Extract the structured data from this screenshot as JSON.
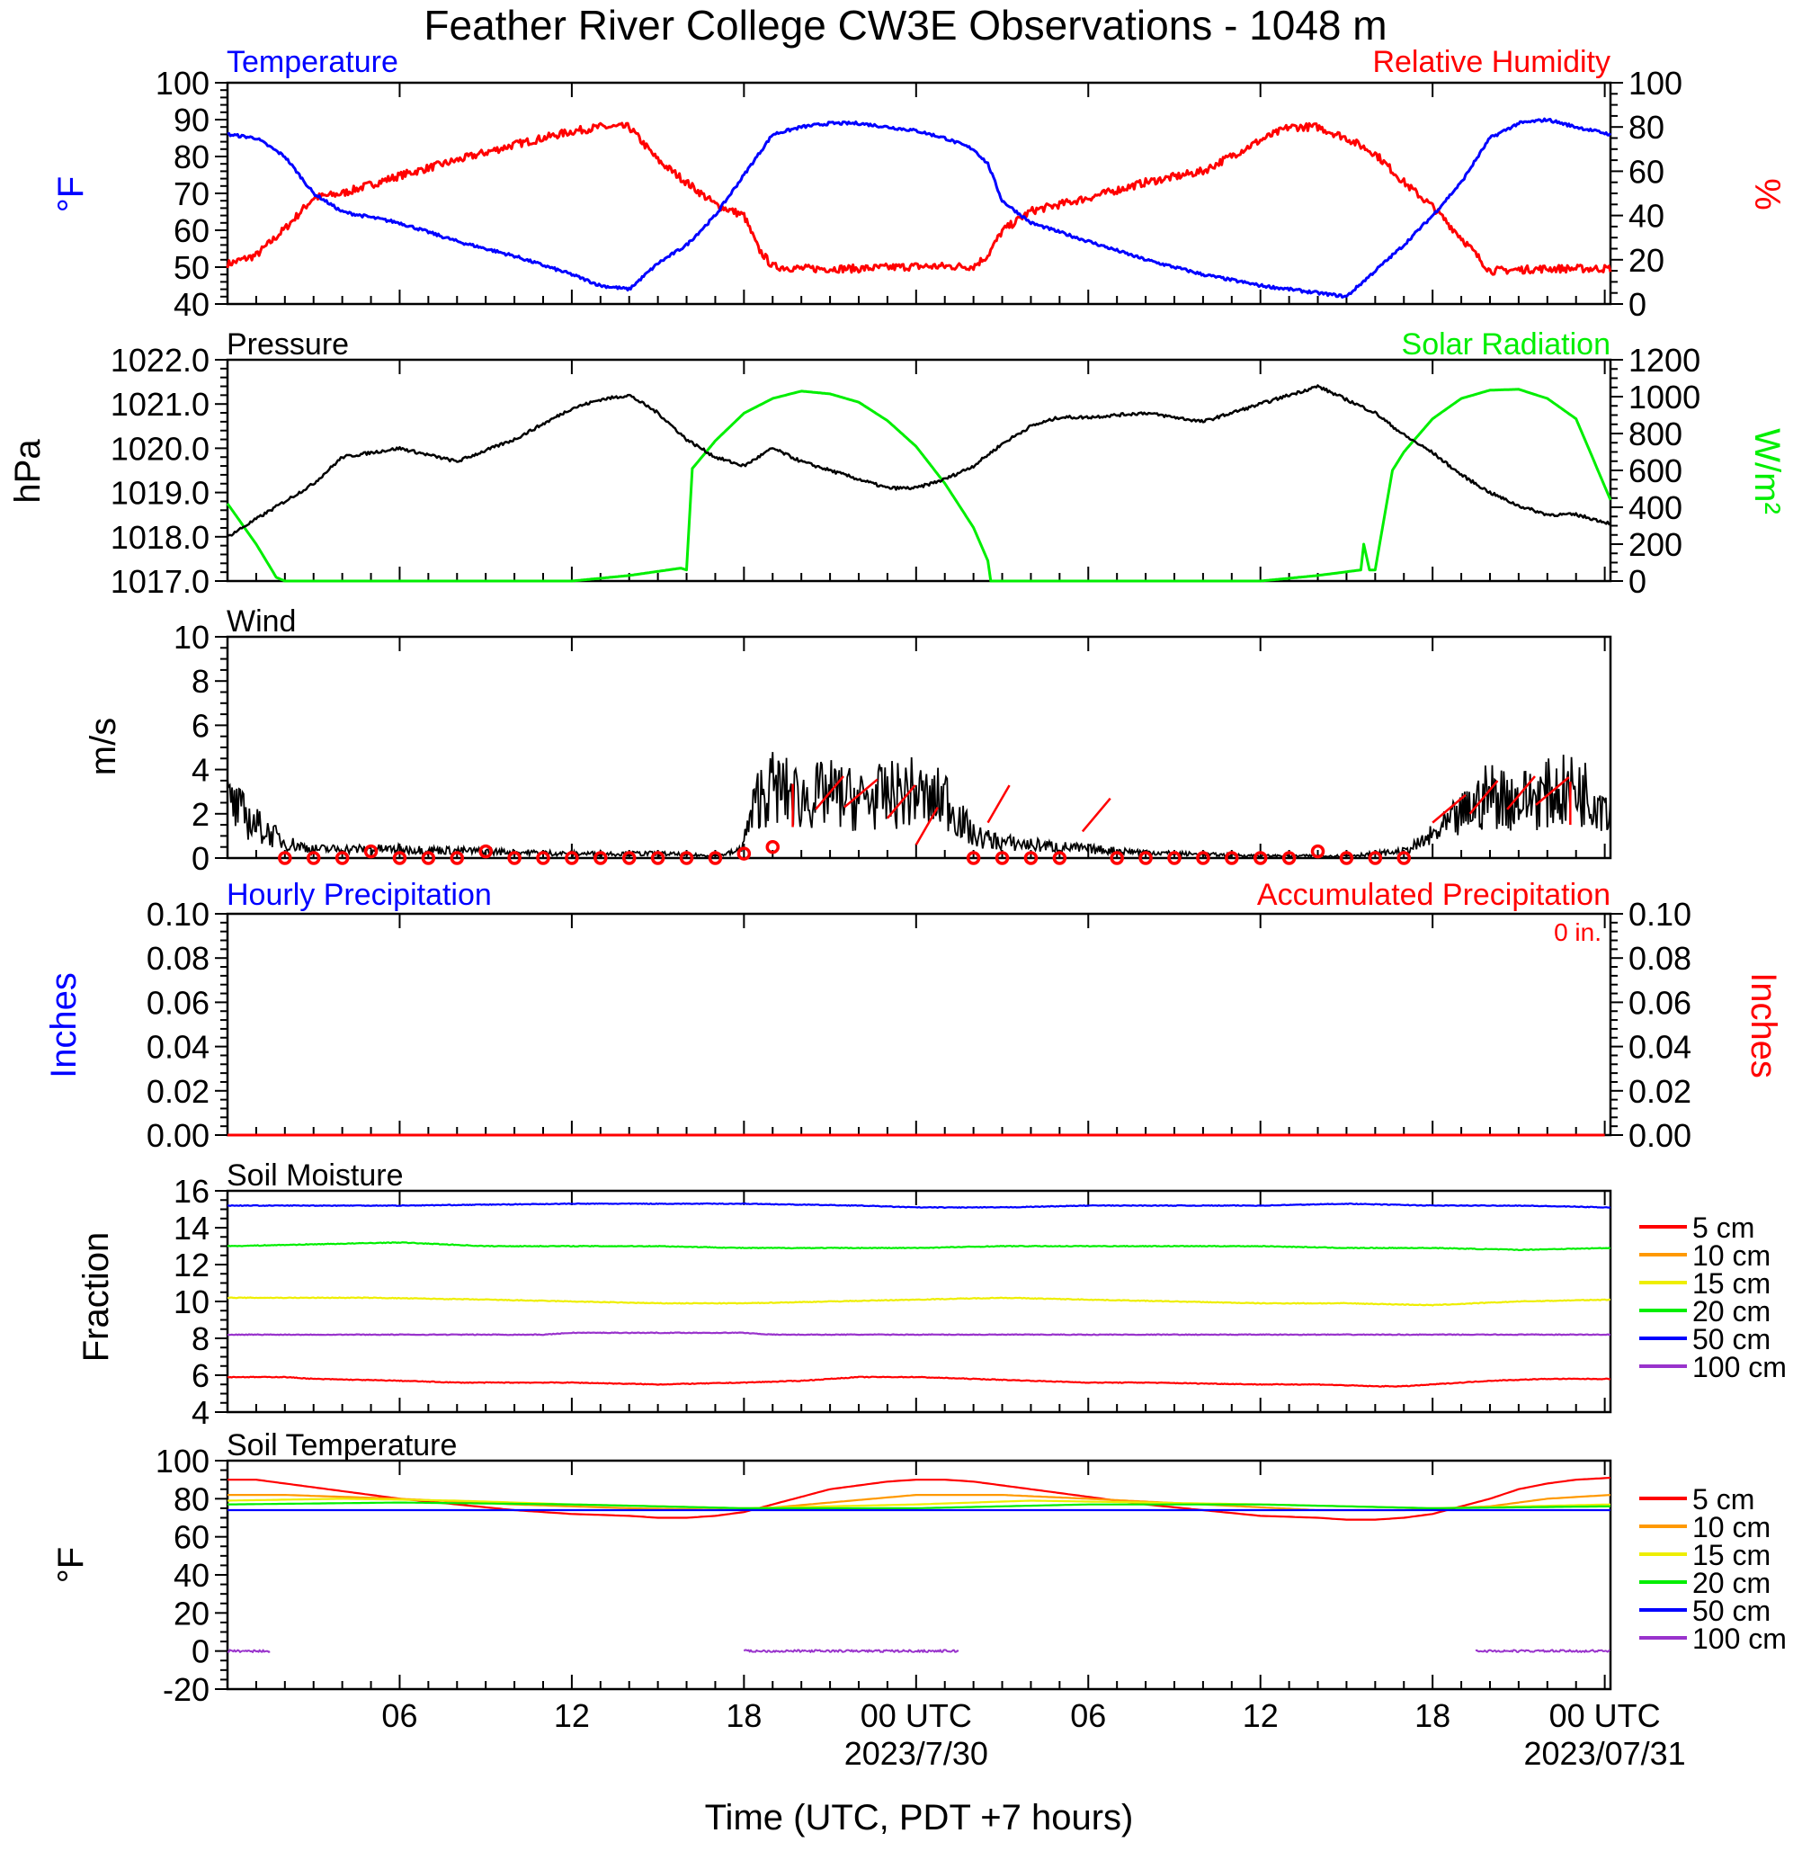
{
  "title": "Feather River College CW3E Observations - 1048 m",
  "time_axis": {
    "xlabel": "Time (UTC, PDT +7 hours)",
    "xlim_hours": [
      0,
      48.2
    ],
    "ticks": [
      {
        "h": 6,
        "label": "06"
      },
      {
        "h": 12,
        "label": "12"
      },
      {
        "h": 18,
        "label": "18"
      },
      {
        "h": 24,
        "label": "00 UTC"
      },
      {
        "h": 30,
        "label": "06"
      },
      {
        "h": 36,
        "label": "12"
      },
      {
        "h": 42,
        "label": "18"
      },
      {
        "h": 48,
        "label": "00 UTC"
      }
    ],
    "dates": [
      {
        "h": 24,
        "label": "2023/7/30"
      },
      {
        "h": 48,
        "label": "2023/07/31"
      }
    ]
  },
  "colors": {
    "blue": "#0000ff",
    "red": "#ff0000",
    "green": "#00ee00",
    "black": "#000000",
    "orange": "#ff9900",
    "yellow": "#eeee00",
    "purple": "#9933cc"
  },
  "panels": {
    "temp": {
      "left_title": "Temperature",
      "right_title": "Relative Humidity",
      "left_ylabel": "°F",
      "right_ylabel": "%"
    },
    "pressure": {
      "left_title": "Pressure",
      "right_title": "Solar Radiation",
      "left_ylabel": "hPa",
      "right_ylabel": "W/m²"
    },
    "wind": {
      "left_title": "Wind",
      "left_ylabel": "m/s"
    },
    "precip": {
      "left_title": "Hourly Precipitation",
      "right_title": "Accumulated Precipitation",
      "left_ylabel": "Inches",
      "right_ylabel": "Inches",
      "accum_text": "0 in."
    },
    "soil_moist": {
      "left_title": "Soil Moisture",
      "left_ylabel": "Fraction"
    },
    "soil_temp": {
      "left_title": "Soil Temperature",
      "left_ylabel": "°F"
    }
  },
  "chart_data": [
    {
      "type": "line",
      "title": "Temperature",
      "ylabel": "°F",
      "ylim": [
        40,
        100
      ],
      "series": [
        {
          "name": "Temperature",
          "color": "blue",
          "x": [
            0,
            1,
            2,
            3,
            4,
            6,
            8,
            10,
            12,
            13,
            14,
            15,
            16,
            17,
            18,
            19,
            20,
            21,
            22,
            23,
            24,
            25,
            26,
            26.5,
            27,
            28,
            30,
            32,
            34,
            36,
            38,
            39,
            40,
            41,
            42,
            43,
            44,
            45,
            46,
            47,
            48.2
          ],
          "y": [
            86,
            85,
            80,
            70,
            65,
            62,
            57,
            53,
            48,
            45,
            44,
            51,
            56,
            64,
            75,
            86,
            88,
            89,
            89,
            88,
            87,
            85,
            82,
            78,
            68,
            62,
            57,
            52,
            48,
            45,
            43,
            42,
            49,
            56,
            64,
            73,
            85,
            89,
            90,
            88,
            86
          ]
        }
      ]
    },
    {
      "type": "line",
      "title": "Relative Humidity",
      "ylabel": "%",
      "ylim": [
        0,
        100
      ],
      "series": [
        {
          "name": "Relative Humidity",
          "color": "red",
          "x": [
            0,
            1,
            2,
            3,
            4,
            6,
            8,
            10,
            12,
            13,
            14,
            15,
            16,
            17,
            18,
            18.5,
            19,
            20,
            22,
            24,
            25,
            26,
            26.5,
            27,
            28,
            30,
            32,
            34,
            36,
            37,
            38,
            39,
            40,
            41,
            42,
            43,
            44,
            46,
            48.2
          ],
          "y": [
            18,
            22,
            34,
            48,
            50,
            58,
            65,
            72,
            78,
            80,
            80,
            65,
            55,
            45,
            40,
            25,
            17,
            16,
            16,
            17,
            17,
            17,
            22,
            33,
            42,
            48,
            55,
            60,
            74,
            80,
            80,
            75,
            68,
            55,
            44,
            30,
            15,
            16,
            16
          ]
        }
      ]
    },
    {
      "type": "line",
      "title": "Pressure",
      "ylabel": "hPa",
      "ylim": [
        1017.0,
        1022.0
      ],
      "series": [
        {
          "name": "Pressure",
          "color": "black",
          "x": [
            0,
            1,
            2,
            3,
            4,
            6,
            8,
            10,
            12,
            13,
            14,
            15,
            16,
            17,
            18,
            19,
            20,
            21,
            22,
            23,
            24,
            25,
            26,
            27,
            28,
            29,
            30,
            32,
            34,
            36,
            37,
            38,
            39,
            40,
            41,
            42,
            43,
            44,
            45,
            46,
            47,
            48.2
          ],
          "y": [
            1018.0,
            1018.4,
            1018.8,
            1019.2,
            1019.8,
            1020.0,
            1019.7,
            1020.2,
            1020.9,
            1021.1,
            1021.2,
            1020.8,
            1020.2,
            1019.8,
            1019.6,
            1020.0,
            1019.7,
            1019.5,
            1019.3,
            1019.1,
            1019.1,
            1019.3,
            1019.6,
            1020.1,
            1020.5,
            1020.7,
            1020.7,
            1020.8,
            1020.6,
            1021.0,
            1021.2,
            1021.4,
            1021.1,
            1020.8,
            1020.3,
            1019.9,
            1019.4,
            1019.0,
            1018.7,
            1018.5,
            1018.5,
            1018.3
          ]
        }
      ]
    },
    {
      "type": "line",
      "title": "Solar Radiation",
      "ylabel": "W/m²",
      "ylim": [
        0,
        1200
      ],
      "series": [
        {
          "name": "Solar Radiation",
          "color": "green",
          "x": [
            0,
            1,
            1.7,
            2,
            12,
            14,
            15.8,
            16,
            16.2,
            17,
            18,
            19,
            20,
            21,
            22,
            23,
            24,
            25,
            26,
            26.5,
            26.6,
            36,
            38,
            39.5,
            39.6,
            39.8,
            40,
            40.6,
            41,
            42,
            43,
            44,
            45,
            46,
            47,
            48.2
          ],
          "y": [
            420,
            200,
            20,
            0,
            0,
            30,
            70,
            60,
            610,
            760,
            910,
            990,
            1030,
            1015,
            970,
            870,
            730,
            530,
            290,
            110,
            0,
            0,
            30,
            60,
            200,
            60,
            60,
            600,
            700,
            880,
            990,
            1035,
            1040,
            990,
            880,
            440
          ]
        }
      ]
    },
    {
      "type": "line",
      "title": "Wind",
      "ylabel": "m/s",
      "ylim": [
        0,
        10
      ],
      "series": [
        {
          "name": "Wind",
          "color": "black",
          "x": [
            0,
            1,
            2,
            3,
            6,
            9,
            12,
            15,
            17,
            17.8,
            18,
            18.5,
            19,
            20,
            21,
            22,
            23,
            24,
            24.5,
            25,
            25.5,
            26,
            27,
            28,
            29,
            30,
            33,
            36,
            39,
            40,
            41,
            41.5,
            42,
            43,
            44,
            45,
            46,
            47,
            48,
            48.2
          ],
          "y": [
            2.5,
            1.5,
            0.7,
            0.4,
            0.4,
            0.3,
            0.2,
            0.2,
            0.1,
            0.3,
            0.8,
            2.8,
            3.2,
            2.7,
            2.9,
            2.6,
            2.8,
            3.0,
            2.5,
            2.8,
            1.8,
            1.0,
            0.7,
            0.6,
            0.5,
            0.4,
            0.2,
            0.1,
            0.1,
            0.2,
            0.3,
            0.6,
            1.0,
            1.9,
            2.9,
            2.6,
            2.9,
            3.1,
            2.6,
            2.4
          ]
        }
      ]
    },
    {
      "type": "line",
      "title": "Hourly Precipitation",
      "ylabel": "Inches",
      "ylim": [
        0,
        0.1
      ],
      "series": [
        {
          "name": "Hourly Precipitation",
          "color": "blue",
          "x": [
            0,
            48.2
          ],
          "y": [
            0,
            0
          ]
        },
        {
          "name": "Accumulated Precipitation",
          "color": "red",
          "x": [
            0,
            48.2
          ],
          "y": [
            0,
            0
          ]
        }
      ]
    },
    {
      "type": "line",
      "title": "Soil Moisture",
      "ylabel": "Fraction",
      "ylim": [
        4,
        16
      ],
      "series": [
        {
          "name": "5 cm",
          "color": "red",
          "x": [
            0,
            2,
            3,
            6,
            8,
            12,
            15,
            18,
            20,
            21,
            22,
            24,
            26,
            28,
            30,
            32,
            36,
            38,
            40,
            41,
            42,
            44,
            46,
            48.2
          ],
          "y": [
            5.9,
            5.9,
            5.8,
            5.7,
            5.6,
            5.6,
            5.5,
            5.6,
            5.7,
            5.8,
            5.9,
            5.9,
            5.8,
            5.7,
            5.6,
            5.6,
            5.5,
            5.5,
            5.4,
            5.4,
            5.5,
            5.7,
            5.8,
            5.8
          ]
        },
        {
          "name": "10 cm",
          "color": "orange",
          "x": [
            0,
            48.2
          ],
          "y": [
            13.0,
            13.0
          ]
        },
        {
          "name": "15 cm",
          "color": "yellow",
          "x": [
            0,
            5,
            9,
            12,
            15,
            18,
            21,
            24,
            27,
            30,
            33,
            36,
            39,
            42,
            45,
            48.2
          ],
          "y": [
            10.2,
            10.2,
            10.1,
            10.0,
            9.9,
            9.9,
            10.0,
            10.1,
            10.2,
            10.1,
            10.0,
            9.9,
            9.9,
            9.8,
            10.0,
            10.1
          ]
        },
        {
          "name": "20 cm",
          "color": "green",
          "x": [
            0,
            3,
            6,
            9,
            12,
            15,
            18,
            21,
            24,
            27,
            30,
            33,
            36,
            39,
            42,
            45,
            48.2
          ],
          "y": [
            13.0,
            13.1,
            13.2,
            13.0,
            13.0,
            13.0,
            12.9,
            12.9,
            12.9,
            13.0,
            13.0,
            13.0,
            13.0,
            12.9,
            12.9,
            12.8,
            12.9
          ]
        },
        {
          "name": "50 cm",
          "color": "blue",
          "x": [
            0,
            6,
            12,
            18,
            22,
            24,
            27,
            30,
            36,
            39,
            42,
            45,
            48.2
          ],
          "y": [
            15.2,
            15.2,
            15.3,
            15.3,
            15.2,
            15.1,
            15.1,
            15.2,
            15.2,
            15.3,
            15.2,
            15.2,
            15.1
          ]
        },
        {
          "name": "100 cm",
          "color": "purple",
          "x": [
            0,
            11,
            12,
            15,
            18,
            19,
            24,
            36,
            48.2
          ],
          "y": [
            8.2,
            8.2,
            8.3,
            8.3,
            8.3,
            8.2,
            8.2,
            8.2,
            8.2
          ]
        }
      ]
    },
    {
      "type": "line",
      "title": "Soil Temperature",
      "ylabel": "°F",
      "ylim": [
        -20,
        100
      ],
      "series": [
        {
          "name": "5 cm",
          "color": "red",
          "x": [
            0,
            1,
            2,
            3,
            4,
            6,
            8,
            10,
            12,
            14,
            15,
            16,
            17,
            18,
            19,
            20,
            21,
            22,
            23,
            24,
            25,
            26,
            27,
            28,
            30,
            32,
            34,
            36,
            38,
            39,
            40,
            41,
            42,
            43,
            44,
            45,
            46,
            47,
            48.2
          ],
          "y": [
            90,
            90,
            88,
            86,
            84,
            80,
            77,
            74,
            72,
            71,
            70,
            70,
            71,
            73,
            77,
            81,
            85,
            87,
            89,
            90,
            90,
            89,
            87,
            85,
            81,
            77,
            74,
            71,
            70,
            69,
            69,
            70,
            72,
            76,
            80,
            85,
            88,
            90,
            91
          ]
        },
        {
          "name": "10 cm",
          "color": "orange",
          "x": [
            0,
            2,
            6,
            10,
            14,
            18,
            21,
            24,
            27,
            30,
            34,
            38,
            41,
            44,
            46,
            48.2
          ],
          "y": [
            82,
            82,
            80,
            77,
            75,
            74,
            78,
            82,
            82,
            80,
            77,
            74,
            74,
            76,
            80,
            82
          ]
        },
        {
          "name": "15 cm",
          "color": "yellow",
          "x": [
            0,
            4,
            8,
            12,
            18,
            24,
            28,
            32,
            36,
            42,
            48.2
          ],
          "y": [
            79,
            80,
            79,
            77,
            75,
            77,
            79,
            78,
            77,
            75,
            77
          ]
        },
        {
          "name": "20 cm",
          "color": "green",
          "x": [
            0,
            6,
            12,
            18,
            24,
            30,
            36,
            42,
            48.2
          ],
          "y": [
            77,
            78,
            77,
            75,
            75,
            77,
            77,
            75,
            76
          ]
        },
        {
          "name": "50 cm",
          "color": "blue",
          "x": [
            0,
            48.2
          ],
          "y": [
            74,
            74
          ]
        },
        {
          "name": "100 cm",
          "color": "purple",
          "x": [
            0,
            1.5
          ],
          "y": [
            0,
            0
          ],
          "x2": [
            18,
            25.5
          ],
          "y2": [
            0,
            0
          ],
          "x3": [
            43.5,
            48.2
          ],
          "y3": [
            0,
            0
          ]
        }
      ]
    }
  ]
}
